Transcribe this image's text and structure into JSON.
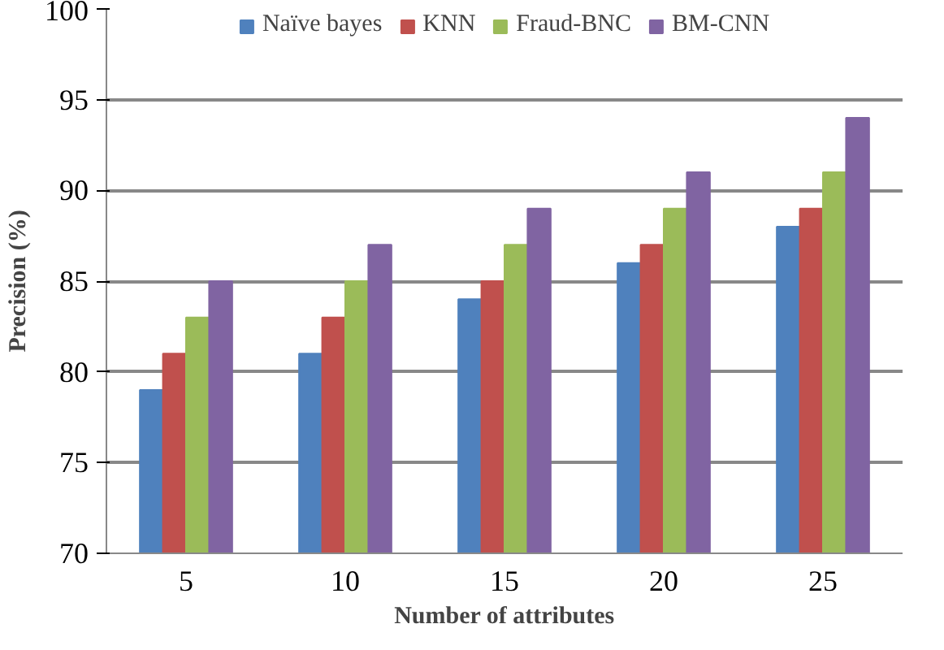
{
  "chart_data": {
    "type": "bar",
    "xlabel": "Number of attributes",
    "ylabel": "Precision (%)",
    "categories": [
      "5",
      "10",
      "15",
      "20",
      "25"
    ],
    "series": [
      {
        "name": "Naïve bayes",
        "color": "#4f81bd",
        "values": [
          79,
          81,
          84,
          86,
          88
        ]
      },
      {
        "name": "KNN",
        "color": "#c0504d",
        "values": [
          81,
          83,
          85,
          87,
          89
        ]
      },
      {
        "name": "Fraud-BNC",
        "color": "#9bbb59",
        "values": [
          83,
          85,
          87,
          89,
          91
        ]
      },
      {
        "name": "BM-CNN",
        "color": "#8064a2",
        "values": [
          85,
          87,
          89,
          91,
          94
        ]
      }
    ],
    "ylim": [
      70,
      100
    ],
    "yticks": [
      70,
      75,
      80,
      85,
      90,
      95,
      100
    ],
    "grid": "y",
    "legend": "top"
  }
}
